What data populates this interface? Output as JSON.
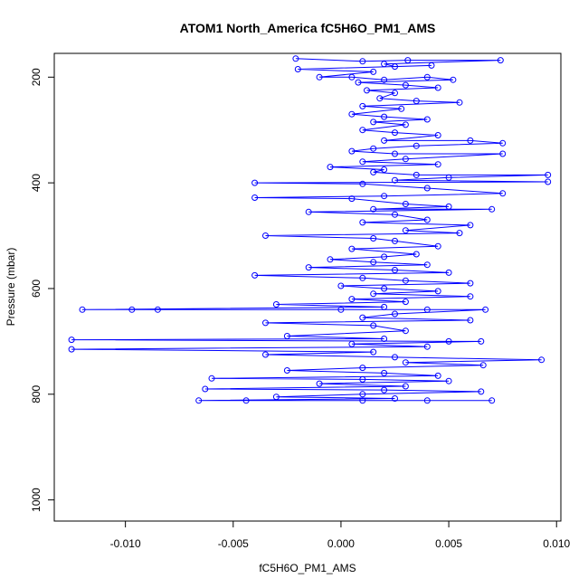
{
  "chart_data": {
    "type": "scatter",
    "title": "ATOM1 North_America fC5H6O_PM1_AMS",
    "xlabel": "fC5H6O_PM1_AMS",
    "ylabel": "Pressure (mbar)",
    "xlim": [
      -0.0133,
      0.0102
    ],
    "ylim": [
      1040,
      155
    ],
    "y_inverted": true,
    "x_ticks": [
      -0.01,
      -0.005,
      0.0,
      0.005,
      0.01
    ],
    "x_tick_labels": [
      "-0.010",
      "-0.005",
      "0.000",
      "0.005",
      "0.010"
    ],
    "y_ticks": [
      200,
      400,
      600,
      800,
      1000
    ],
    "y_tick_labels": [
      "200",
      "400",
      "600",
      "800",
      "1000"
    ],
    "marker": "open-circle",
    "connected": true,
    "color": "#0000ff",
    "series": [
      {
        "points": [
          [
            -0.0021,
            165
          ],
          [
            0.001,
            170
          ],
          [
            0.0031,
            168
          ],
          [
            0.0074,
            168
          ],
          [
            0.002,
            175
          ],
          [
            0.0025,
            180
          ],
          [
            0.0042,
            178
          ],
          [
            -0.002,
            185
          ],
          [
            0.0015,
            190
          ],
          [
            -0.001,
            200
          ],
          [
            0.0005,
            200
          ],
          [
            0.002,
            205
          ],
          [
            0.004,
            200
          ],
          [
            0.0052,
            205
          ],
          [
            0.0008,
            210
          ],
          [
            0.003,
            215
          ],
          [
            0.0045,
            220
          ],
          [
            0.0012,
            225
          ],
          [
            0.0025,
            230
          ],
          [
            0.0018,
            240
          ],
          [
            0.0035,
            245
          ],
          [
            0.0055,
            248
          ],
          [
            0.001,
            255
          ],
          [
            0.0028,
            260
          ],
          [
            0.0005,
            270
          ],
          [
            0.002,
            275
          ],
          [
            0.004,
            280
          ],
          [
            0.0015,
            285
          ],
          [
            0.003,
            290
          ],
          [
            0.001,
            300
          ],
          [
            0.0025,
            305
          ],
          [
            0.0045,
            310
          ],
          [
            0.002,
            320
          ],
          [
            0.006,
            320
          ],
          [
            0.0075,
            325
          ],
          [
            0.0035,
            330
          ],
          [
            0.0015,
            335
          ],
          [
            0.0005,
            340
          ],
          [
            0.0025,
            345
          ],
          [
            0.0075,
            345
          ],
          [
            0.003,
            355
          ],
          [
            0.001,
            360
          ],
          [
            0.0045,
            365
          ],
          [
            -0.0005,
            370
          ],
          [
            0.002,
            375
          ],
          [
            0.0015,
            380
          ],
          [
            0.0035,
            385
          ],
          [
            0.0096,
            385
          ],
          [
            0.005,
            390
          ],
          [
            0.0025,
            395
          ],
          [
            0.0096,
            398
          ],
          [
            -0.004,
            400
          ],
          [
            0.001,
            402
          ],
          [
            0.004,
            410
          ],
          [
            0.0075,
            420
          ],
          [
            0.002,
            425
          ],
          [
            -0.004,
            428
          ],
          [
            0.0005,
            430
          ],
          [
            0.003,
            440
          ],
          [
            0.005,
            445
          ],
          [
            0.0015,
            450
          ],
          [
            0.007,
            450
          ],
          [
            -0.0015,
            455
          ],
          [
            0.0025,
            460
          ],
          [
            0.004,
            470
          ],
          [
            0.001,
            475
          ],
          [
            0.006,
            480
          ],
          [
            0.003,
            490
          ],
          [
            0.0055,
            495
          ],
          [
            -0.0035,
            500
          ],
          [
            0.0015,
            505
          ],
          [
            0.0025,
            510
          ],
          [
            0.0045,
            520
          ],
          [
            0.0005,
            525
          ],
          [
            0.0035,
            535
          ],
          [
            0.002,
            540
          ],
          [
            -0.0005,
            545
          ],
          [
            0.0015,
            550
          ],
          [
            0.004,
            555
          ],
          [
            -0.0015,
            560
          ],
          [
            0.0025,
            565
          ],
          [
            0.005,
            570
          ],
          [
            -0.004,
            575
          ],
          [
            0.001,
            580
          ],
          [
            0.003,
            585
          ],
          [
            0.006,
            590
          ],
          [
            0.0,
            595
          ],
          [
            0.002,
            600
          ],
          [
            0.0045,
            605
          ],
          [
            0.0015,
            610
          ],
          [
            0.006,
            615
          ],
          [
            0.0005,
            620
          ],
          [
            0.003,
            625
          ],
          [
            -0.003,
            630
          ],
          [
            0.002,
            635
          ],
          [
            -0.012,
            640
          ],
          [
            -0.0097,
            640
          ],
          [
            -0.0085,
            640
          ],
          [
            0.0,
            640
          ],
          [
            0.004,
            640
          ],
          [
            0.0067,
            640
          ],
          [
            0.0025,
            648
          ],
          [
            0.001,
            655
          ],
          [
            0.006,
            660
          ],
          [
            -0.0035,
            665
          ],
          [
            0.0015,
            670
          ],
          [
            0.003,
            680
          ],
          [
            -0.0025,
            690
          ],
          [
            0.002,
            695
          ],
          [
            -0.0125,
            697
          ],
          [
            0.005,
            700
          ],
          [
            0.0065,
            700
          ],
          [
            0.0005,
            705
          ],
          [
            0.004,
            710
          ],
          [
            -0.0125,
            715
          ],
          [
            0.0015,
            720
          ],
          [
            -0.0035,
            725
          ],
          [
            0.0025,
            730
          ],
          [
            0.0093,
            735
          ],
          [
            0.003,
            740
          ],
          [
            0.0066,
            745
          ],
          [
            0.001,
            750
          ],
          [
            -0.0025,
            755
          ],
          [
            0.002,
            760
          ],
          [
            0.0045,
            765
          ],
          [
            -0.006,
            770
          ],
          [
            0.001,
            772
          ],
          [
            0.005,
            775
          ],
          [
            -0.001,
            780
          ],
          [
            0.003,
            785
          ],
          [
            -0.0063,
            790
          ],
          [
            0.002,
            792
          ],
          [
            0.0065,
            795
          ],
          [
            0.001,
            800
          ],
          [
            -0.003,
            805
          ],
          [
            0.0025,
            808
          ],
          [
            -0.0066,
            812
          ],
          [
            -0.0044,
            812
          ],
          [
            0.001,
            812
          ],
          [
            0.004,
            812
          ],
          [
            0.007,
            812
          ]
        ]
      }
    ]
  }
}
